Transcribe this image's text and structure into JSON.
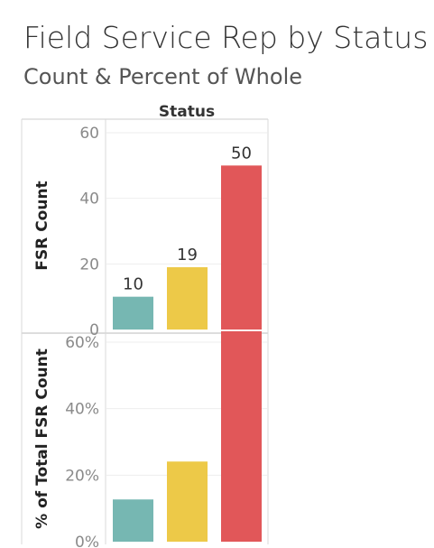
{
  "title": "Field Service Rep by Status",
  "subtitle": "Count & Percent of Whole",
  "chart_data": {
    "type": "bar",
    "header": "Status",
    "categories": [
      "",
      "",
      ""
    ],
    "colors": [
      "#76b7b2",
      "#edc948",
      "#e15759"
    ],
    "panels": [
      {
        "ylabel": "FSR Count",
        "values": [
          10,
          19,
          50
        ],
        "ylim": [
          0,
          60
        ],
        "ticks": [
          0,
          20,
          40,
          60
        ],
        "tick_labels": [
          "0",
          "20",
          "40",
          "60"
        ],
        "data_labels": [
          "10",
          "19",
          "50"
        ],
        "grid": true
      },
      {
        "ylabel": "% of Total FSR Count",
        "values": [
          12.7,
          24.1,
          63.3
        ],
        "ylim": [
          0,
          66
        ],
        "ticks": [
          0,
          20,
          40,
          60
        ],
        "tick_labels": [
          "0%",
          "20%",
          "40%",
          "60%"
        ],
        "grid": true
      }
    ]
  }
}
